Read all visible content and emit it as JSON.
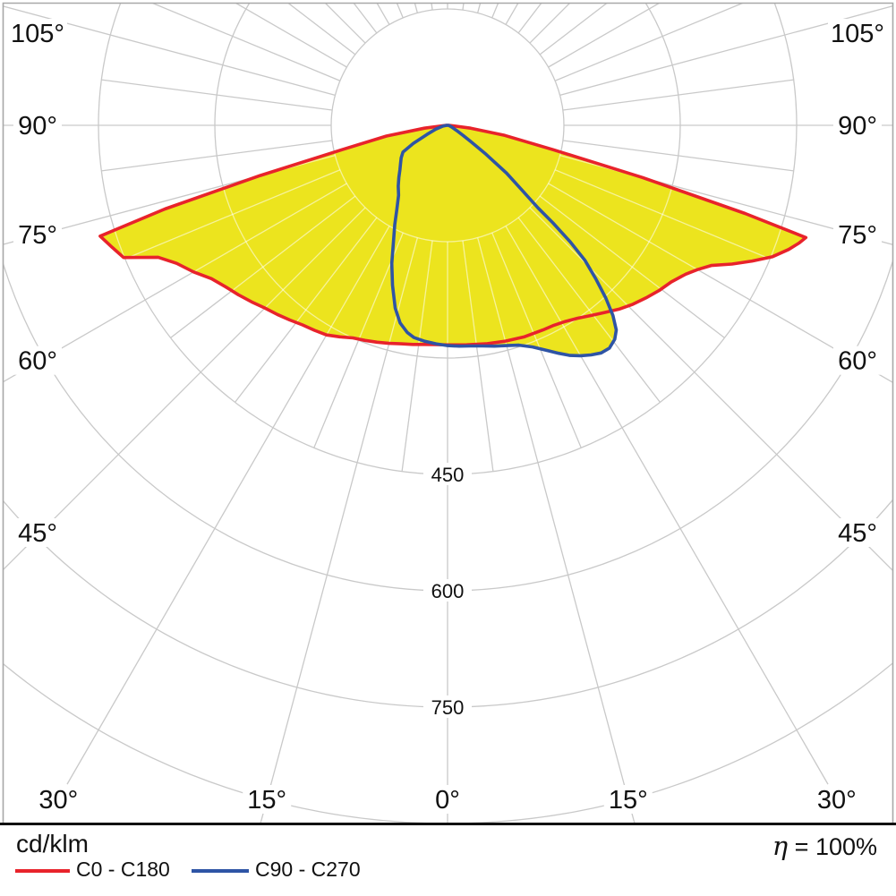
{
  "legend": {
    "unit_label": "cd/klm",
    "items": [
      {
        "label": "C0 - C180",
        "color": "#e8232b"
      },
      {
        "label": "C90 - C270",
        "color": "#2e54a5"
      }
    ],
    "efficiency_symbol": "η",
    "efficiency_rest": " = 100%"
  },
  "chart_data": {
    "type": "polar",
    "subtype": "photometric_intensity_distribution",
    "unit": "cd/klm",
    "efficiency": "η = 100%",
    "orientation": "0° at nadir (bottom), gamma angles increase to ±105° past horizontal",
    "angle_grid": {
      "major_step_deg": 15,
      "fine_step_deg": 7.5,
      "max_labeled_angle_deg": 105
    },
    "side_angle_labels": [
      "105°",
      "90°",
      "75°",
      "60°",
      "45°"
    ],
    "bottom_angle_labels": [
      "30°",
      "15°",
      "0°",
      "15°",
      "30°"
    ],
    "radial_rings": [
      150,
      300,
      450,
      600,
      750,
      900
    ],
    "radial_ring_labels": [
      "450",
      "600",
      "750"
    ],
    "fill_color": "#ece41e",
    "grid_color": "#c9c9c9",
    "grid_over_fill_color": "rgba(255,255,255,0.55)",
    "frame_color": "#a8a8a8",
    "series": [
      {
        "name": "C0 - C180",
        "color": "#e8232b",
        "points_deg_value": [
          [
            -90,
            2
          ],
          [
            -83,
            30
          ],
          [
            -80,
            80
          ],
          [
            -77,
            140
          ],
          [
            -75,
            250
          ],
          [
            -73.5,
            380
          ],
          [
            -72.3,
            470
          ],
          [
            -70,
            460
          ],
          [
            -67.8,
            451
          ],
          [
            -65.5,
            410
          ],
          [
            -63,
            392
          ],
          [
            -60,
            378
          ],
          [
            -57,
            363
          ],
          [
            -54,
            354
          ],
          [
            -51,
            347
          ],
          [
            -48,
            340
          ],
          [
            -45,
            333
          ],
          [
            -42,
            328
          ],
          [
            -39,
            323
          ],
          [
            -36,
            318
          ],
          [
            -33,
            315
          ],
          [
            -30,
            312
          ],
          [
            -27,
            306
          ],
          [
            -24,
            300
          ],
          [
            -21,
            297
          ],
          [
            -18,
            294
          ],
          [
            -15,
            291
          ],
          [
            -12,
            288
          ],
          [
            -9,
            286
          ],
          [
            -6,
            284
          ],
          [
            -3,
            283
          ],
          [
            0,
            283
          ],
          [
            5,
            284
          ],
          [
            10,
            286
          ],
          [
            15,
            288
          ],
          [
            20,
            290
          ],
          [
            25,
            291
          ],
          [
            28,
            292
          ],
          [
            31,
            295
          ],
          [
            34,
            300
          ],
          [
            37,
            307
          ],
          [
            40,
            315
          ],
          [
            43,
            324
          ],
          [
            46,
            332
          ],
          [
            49,
            339
          ],
          [
            52,
            346
          ],
          [
            55,
            352
          ],
          [
            58,
            362
          ],
          [
            60,
            372
          ],
          [
            62,
            385
          ],
          [
            64,
            408
          ],
          [
            66,
            430
          ],
          [
            68,
            452
          ],
          [
            70,
            468
          ],
          [
            71.5,
            478
          ],
          [
            72.6,
            484
          ],
          [
            73.5,
            400
          ],
          [
            75,
            260
          ],
          [
            77,
            140
          ],
          [
            80,
            75
          ],
          [
            83,
            30
          ],
          [
            90,
            2
          ]
        ]
      },
      {
        "name": "C90 - C270",
        "color": "#2e54a5",
        "points_deg_value": [
          [
            -90,
            1
          ],
          [
            -80,
            6
          ],
          [
            -72,
            16
          ],
          [
            -66,
            29
          ],
          [
            -62,
            50
          ],
          [
            -59,
            67
          ],
          [
            -55,
            73
          ],
          [
            -51,
            78
          ],
          [
            -47,
            84
          ],
          [
            -43,
            92
          ],
          [
            -39,
            101
          ],
          [
            -35,
            110
          ],
          [
            -31,
            127
          ],
          [
            -28,
            145
          ],
          [
            -25,
            165
          ],
          [
            -22,
            192
          ],
          [
            -19,
            218
          ],
          [
            -16,
            245
          ],
          [
            -13.5,
            262
          ],
          [
            -11,
            272
          ],
          [
            -9,
            277
          ],
          [
            -6,
            280
          ],
          [
            -3,
            282
          ],
          [
            0,
            284
          ],
          [
            3,
            285
          ],
          [
            6,
            286
          ],
          [
            9,
            288
          ],
          [
            12,
            291
          ],
          [
            15,
            294
          ],
          [
            18,
            298
          ],
          [
            21,
            306
          ],
          [
            24,
            318
          ],
          [
            26,
            327
          ],
          [
            28,
            336
          ],
          [
            30,
            343
          ],
          [
            32,
            349
          ],
          [
            34,
            354
          ],
          [
            36,
            355
          ],
          [
            38,
            350
          ],
          [
            39.5,
            342
          ],
          [
            41,
            325
          ],
          [
            42.5,
            302
          ],
          [
            44,
            275
          ],
          [
            45.5,
            248
          ],
          [
            46.5,
            218
          ],
          [
            47.2,
            185
          ],
          [
            47.6,
            158
          ],
          [
            49,
            126
          ],
          [
            51,
            98
          ],
          [
            53,
            62
          ],
          [
            55,
            36
          ],
          [
            57,
            24
          ],
          [
            60,
            14
          ],
          [
            67,
            6
          ],
          [
            75,
            3
          ],
          [
            90,
            1
          ]
        ]
      }
    ]
  }
}
